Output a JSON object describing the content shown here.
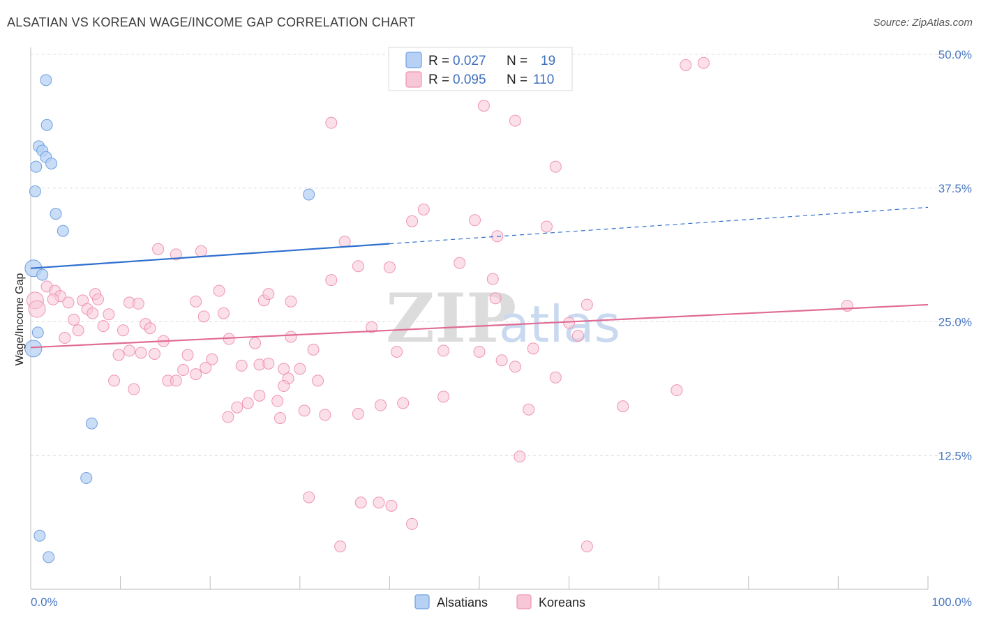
{
  "title": "ALSATIAN VS KOREAN WAGE/INCOME GAP CORRELATION CHART",
  "source": "Source: ZipAtlas.com",
  "watermark": {
    "zip": "ZIP",
    "atlas": "atlas"
  },
  "colors": {
    "alsatian": "#6f9fe0",
    "alsatian_fill": "#b7d1f4",
    "alsatian_line": "#2f6fcf",
    "korean": "#ef94b2",
    "korean_fill": "#f8c7d7",
    "korean_line": "#e06b95",
    "tick": "#4a78c2",
    "grid": "#dcdcdc"
  },
  "legend": {
    "rows": [
      {
        "r_label": "R =",
        "r_value": "0.027",
        "n_label": "N =",
        "n_value": "19"
      },
      {
        "r_label": "R =",
        "r_value": "0.095",
        "n_label": "N =",
        "n_value": "110"
      }
    ]
  },
  "bottom_legend": [
    "Alsatians",
    "Koreans"
  ],
  "chart_data": {
    "type": "scatter",
    "title": "ALSATIAN VS KOREAN WAGE/INCOME GAP CORRELATION CHART",
    "xlabel": "",
    "ylabel": "Wage/Income Gap",
    "xlim": [
      0,
      100
    ],
    "ylim": [
      0,
      50
    ],
    "x_tick_labels": [
      "0.0%",
      "100.0%"
    ],
    "y_ticks": [
      12.5,
      25.0,
      37.5,
      50.0
    ],
    "y_tick_labels": [
      "12.5%",
      "25.0%",
      "37.5%",
      "50.0%"
    ],
    "grid": true,
    "series": [
      {
        "name": "Alsatians",
        "points": [
          [
            1.7,
            47.6
          ],
          [
            1.8,
            43.4
          ],
          [
            0.9,
            41.4
          ],
          [
            1.3,
            41.0
          ],
          [
            1.7,
            40.4
          ],
          [
            2.3,
            39.8
          ],
          [
            0.6,
            39.5
          ],
          [
            0.5,
            37.2
          ],
          [
            31.0,
            36.9
          ],
          [
            2.8,
            35.1
          ],
          [
            3.6,
            33.5
          ],
          [
            0.3,
            30.0
          ],
          [
            1.3,
            29.4
          ],
          [
            0.8,
            24.0
          ],
          [
            0.3,
            22.5
          ],
          [
            6.8,
            15.5
          ],
          [
            6.2,
            10.4
          ],
          [
            1.0,
            5.0
          ],
          [
            2.0,
            3.0
          ]
        ],
        "trend": {
          "x_start": 0,
          "y_start": 30.0,
          "x_end": 40,
          "y_end": 32.3,
          "dash_x_end": 100,
          "dash_y_end": 35.7
        }
      },
      {
        "name": "Koreans",
        "points": [
          [
            73.0,
            49.0
          ],
          [
            75.0,
            49.2
          ],
          [
            50.5,
            45.2
          ],
          [
            54.0,
            43.8
          ],
          [
            33.5,
            43.6
          ],
          [
            58.5,
            39.5
          ],
          [
            43.8,
            35.5
          ],
          [
            42.5,
            34.4
          ],
          [
            49.5,
            34.5
          ],
          [
            57.5,
            33.9
          ],
          [
            52.0,
            33.0
          ],
          [
            35.0,
            32.5
          ],
          [
            14.2,
            31.8
          ],
          [
            16.2,
            31.3
          ],
          [
            19.0,
            31.6
          ],
          [
            36.5,
            30.2
          ],
          [
            40.0,
            30.1
          ],
          [
            47.8,
            30.5
          ],
          [
            33.5,
            28.9
          ],
          [
            51.5,
            29.0
          ],
          [
            0.5,
            27.0
          ],
          [
            0.7,
            26.2
          ],
          [
            1.8,
            28.3
          ],
          [
            2.7,
            27.9
          ],
          [
            3.3,
            27.4
          ],
          [
            2.5,
            27.1
          ],
          [
            4.2,
            26.8
          ],
          [
            5.8,
            27.0
          ],
          [
            7.2,
            27.6
          ],
          [
            7.5,
            27.1
          ],
          [
            11.0,
            26.8
          ],
          [
            12.0,
            26.7
          ],
          [
            18.4,
            26.9
          ],
          [
            21.0,
            27.9
          ],
          [
            26.0,
            27.0
          ],
          [
            26.5,
            27.6
          ],
          [
            29.0,
            26.9
          ],
          [
            51.8,
            27.2
          ],
          [
            62.0,
            26.6
          ],
          [
            91.0,
            26.5
          ],
          [
            6.3,
            26.2
          ],
          [
            6.9,
            25.8
          ],
          [
            8.7,
            25.7
          ],
          [
            19.3,
            25.5
          ],
          [
            21.5,
            25.8
          ],
          [
            4.8,
            25.2
          ],
          [
            8.1,
            24.6
          ],
          [
            10.3,
            24.2
          ],
          [
            12.8,
            24.8
          ],
          [
            13.3,
            24.4
          ],
          [
            5.3,
            24.2
          ],
          [
            3.8,
            23.5
          ],
          [
            14.8,
            23.2
          ],
          [
            22.1,
            23.4
          ],
          [
            25.0,
            23.0
          ],
          [
            29.0,
            23.6
          ],
          [
            38.0,
            24.5
          ],
          [
            60.0,
            24.9
          ],
          [
            61.0,
            23.7
          ],
          [
            11.0,
            22.3
          ],
          [
            9.8,
            21.9
          ],
          [
            12.3,
            22.1
          ],
          [
            13.8,
            22.0
          ],
          [
            17.5,
            21.9
          ],
          [
            20.2,
            21.5
          ],
          [
            31.5,
            22.4
          ],
          [
            40.8,
            22.2
          ],
          [
            46.0,
            22.3
          ],
          [
            50.0,
            22.2
          ],
          [
            56.0,
            22.5
          ],
          [
            23.5,
            20.9
          ],
          [
            25.5,
            21.0
          ],
          [
            26.5,
            21.1
          ],
          [
            28.2,
            20.6
          ],
          [
            30.0,
            20.6
          ],
          [
            17.0,
            20.5
          ],
          [
            18.4,
            20.1
          ],
          [
            19.5,
            20.7
          ],
          [
            52.5,
            21.4
          ],
          [
            54.0,
            20.8
          ],
          [
            58.5,
            19.8
          ],
          [
            9.3,
            19.5
          ],
          [
            15.3,
            19.5
          ],
          [
            16.2,
            19.5
          ],
          [
            28.7,
            19.7
          ],
          [
            28.2,
            19.0
          ],
          [
            32.0,
            19.5
          ],
          [
            11.5,
            18.7
          ],
          [
            23.0,
            17.0
          ],
          [
            24.2,
            17.4
          ],
          [
            25.5,
            18.1
          ],
          [
            27.5,
            17.6
          ],
          [
            30.5,
            16.7
          ],
          [
            36.5,
            16.4
          ],
          [
            39.0,
            17.2
          ],
          [
            41.5,
            17.4
          ],
          [
            46.0,
            18.0
          ],
          [
            55.5,
            16.8
          ],
          [
            66.0,
            17.1
          ],
          [
            72.0,
            18.6
          ],
          [
            22.0,
            16.1
          ],
          [
            27.8,
            16.0
          ],
          [
            32.8,
            16.3
          ],
          [
            54.5,
            12.4
          ],
          [
            31.0,
            8.6
          ],
          [
            36.8,
            8.1
          ],
          [
            38.8,
            8.1
          ],
          [
            40.2,
            7.8
          ],
          [
            42.5,
            6.1
          ],
          [
            34.5,
            4.0
          ],
          [
            62.0,
            4.0
          ]
        ],
        "trend": {
          "x_start": 0,
          "y_start": 22.6,
          "x_end": 100,
          "y_end": 26.6
        }
      }
    ]
  }
}
